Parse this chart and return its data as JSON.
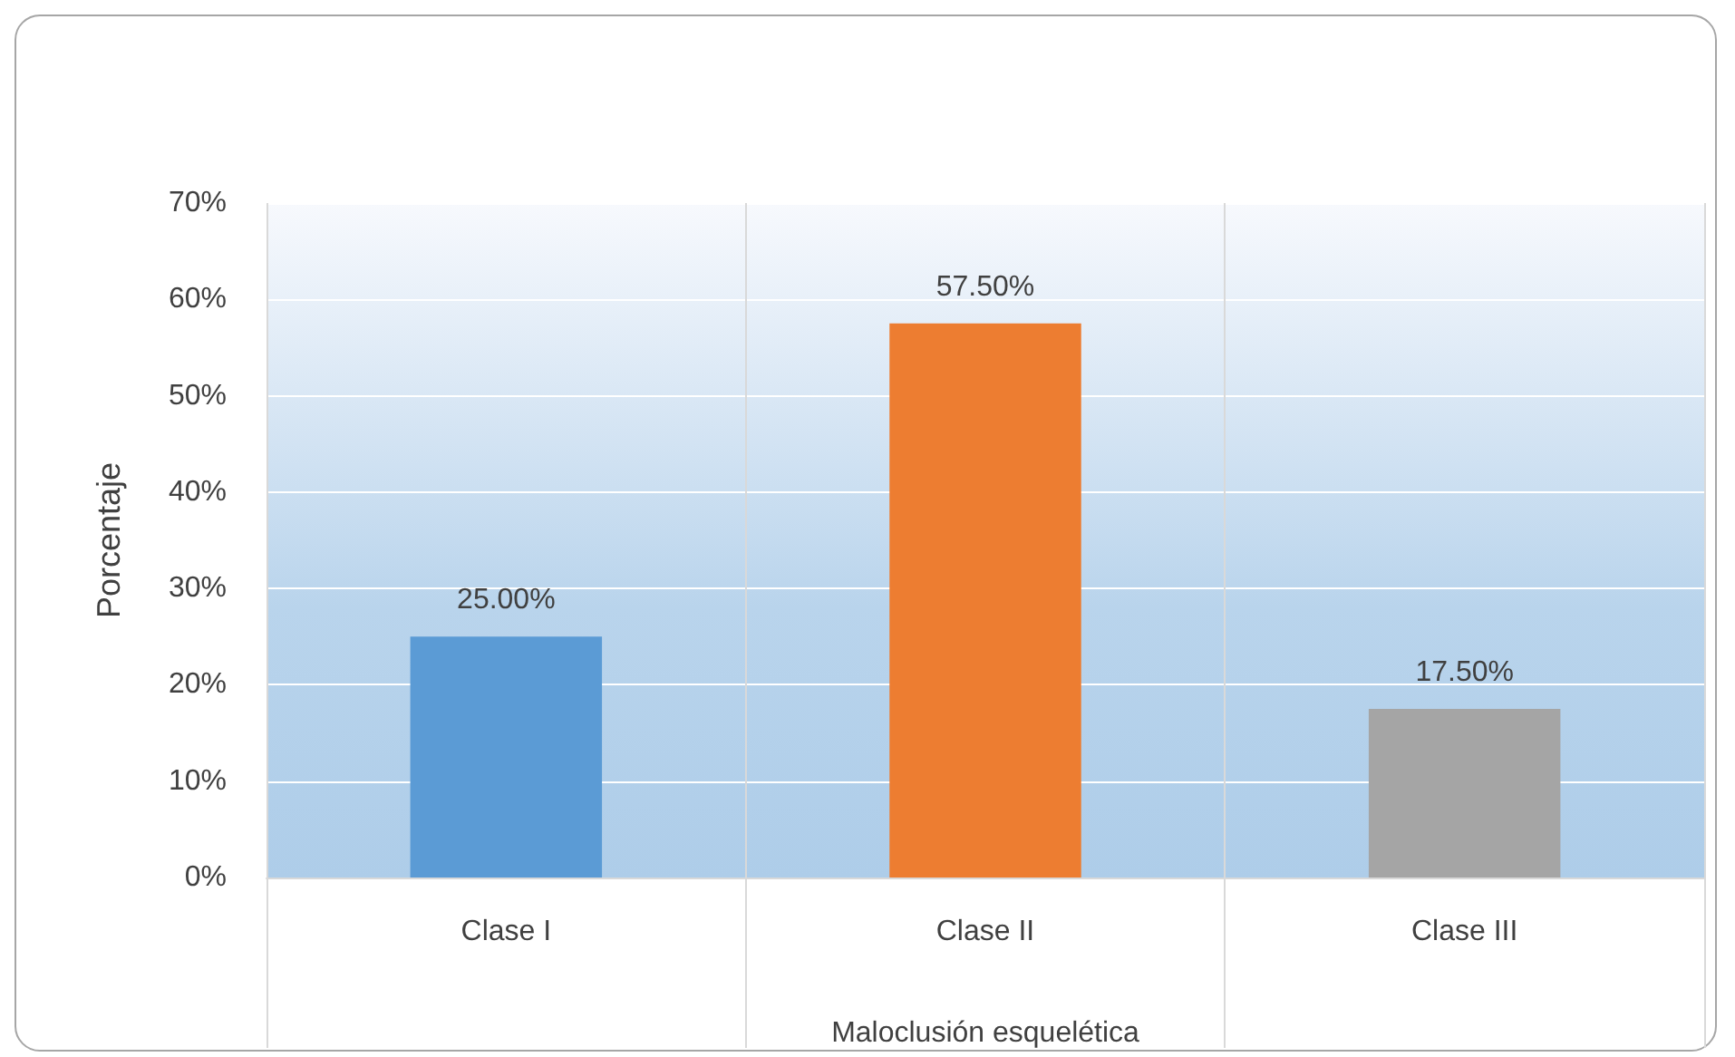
{
  "chart_data": {
    "type": "bar",
    "categories": [
      "Clase I",
      "Clase II",
      "Clase III"
    ],
    "values": [
      25,
      57.5,
      17.5
    ],
    "colors": [
      "#5b9bd5",
      "#ed7d31",
      "#a5a5a5"
    ],
    "value_labels": [
      "25.00%",
      "57.50%",
      "17.50%"
    ],
    "xlabel": "Maloclusión esquelética",
    "ylabel": "Porcentaje",
    "ylim": [
      0,
      70
    ],
    "yticks": [
      {
        "value": 0,
        "label": "0%"
      },
      {
        "value": 10,
        "label": "10%"
      },
      {
        "value": 20,
        "label": "20%"
      },
      {
        "value": 30,
        "label": "30%"
      },
      {
        "value": 40,
        "label": "40%"
      },
      {
        "value": 50,
        "label": "50%"
      },
      {
        "value": 60,
        "label": "60%"
      },
      {
        "value": 70,
        "label": "70%"
      }
    ],
    "grid": true
  }
}
